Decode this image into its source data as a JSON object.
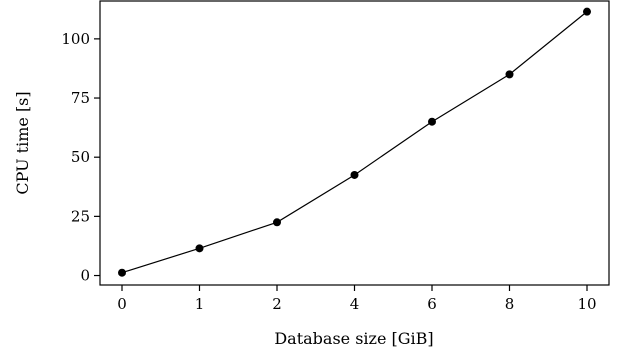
{
  "chart_data": {
    "type": "line",
    "xlabel": "Database size [GiB]",
    "ylabel": "CPU time [s]",
    "categories": [
      "0",
      "1",
      "2",
      "4",
      "6",
      "8",
      "10"
    ],
    "series": [
      {
        "values": [
          1.2,
          11.5,
          22.5,
          42.5,
          65,
          85,
          111.5
        ]
      }
    ],
    "ylim": [
      -4,
      116
    ],
    "yticks": [
      0,
      25,
      50,
      75,
      100
    ],
    "grid": false,
    "colors": {
      "line": "#000000",
      "marker": "#000000",
      "axes": "#000000"
    }
  }
}
